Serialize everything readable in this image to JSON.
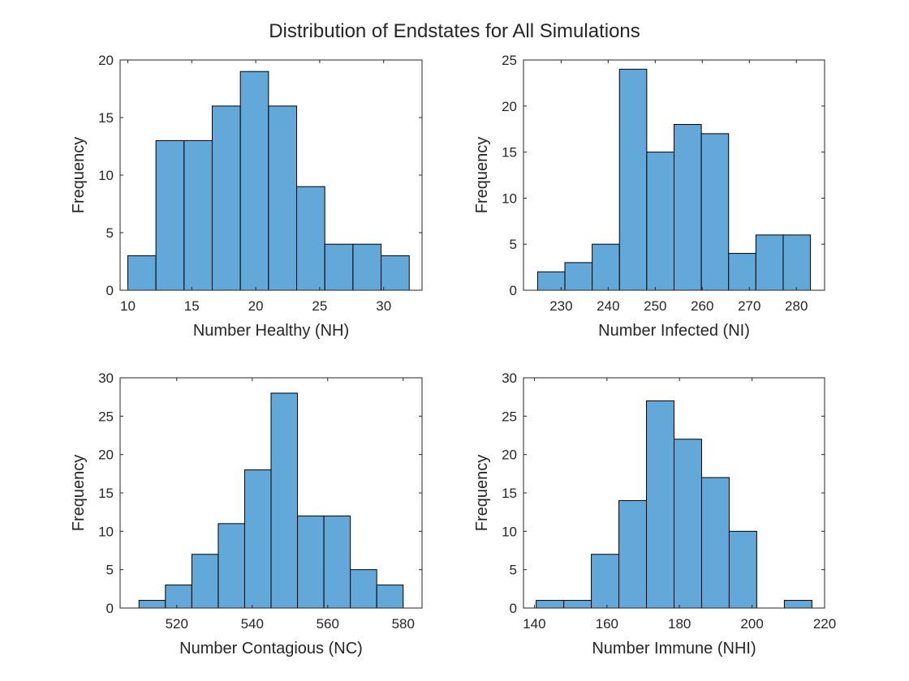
{
  "figure_title": "Distribution of Endstates for All Simulations",
  "bar_color": "#62a8d8",
  "chart_data": [
    {
      "type": "bar",
      "xlabel": "Number Healthy (NH)",
      "ylabel": "Frequency",
      "xlim": [
        9.4,
        33
      ],
      "ylim": [
        0,
        20
      ],
      "xticks": [
        10,
        15,
        20,
        25,
        30
      ],
      "yticks": [
        0,
        5,
        10,
        15,
        20
      ],
      "bin_edges": [
        10,
        12.2,
        14.4,
        16.6,
        18.8,
        21,
        23.2,
        25.4,
        27.6,
        29.8,
        32
      ],
      "values": [
        3,
        13,
        13,
        16,
        19,
        16,
        9,
        4,
        4,
        3
      ]
    },
    {
      "type": "bar",
      "xlabel": "Number Infected (NI)",
      "ylabel": "Frequency",
      "xlim": [
        222,
        286
      ],
      "ylim": [
        0,
        25
      ],
      "xticks": [
        230,
        240,
        250,
        260,
        270,
        280
      ],
      "yticks": [
        0,
        5,
        10,
        15,
        20,
        25
      ],
      "bin_edges": [
        225,
        230.8,
        236.6,
        242.4,
        248.2,
        254,
        259.8,
        265.6,
        271.4,
        277.2,
        283
      ],
      "values": [
        2,
        3,
        5,
        24,
        15,
        18,
        17,
        4,
        6,
        6
      ]
    },
    {
      "type": "bar",
      "xlabel": "Number Contagious (NC)",
      "ylabel": "Frequency",
      "xlim": [
        505,
        585
      ],
      "ylim": [
        0,
        30
      ],
      "xticks": [
        520,
        540,
        560,
        580
      ],
      "yticks": [
        0,
        5,
        10,
        15,
        20,
        25,
        30
      ],
      "bin_edges": [
        510,
        517,
        524,
        531,
        538,
        545,
        552,
        559,
        566,
        573,
        580
      ],
      "values": [
        1,
        3,
        7,
        11,
        18,
        28,
        12,
        12,
        5,
        3
      ]
    },
    {
      "type": "bar",
      "xlabel": "Number Immune (NHI)",
      "ylabel": "Frequency",
      "xlim": [
        137,
        220
      ],
      "ylim": [
        0,
        30
      ],
      "xticks": [
        140,
        160,
        180,
        200,
        220
      ],
      "yticks": [
        0,
        5,
        10,
        15,
        20,
        25,
        30
      ],
      "bin_edges": [
        140.5,
        148.1,
        155.7,
        163.3,
        170.9,
        178.5,
        186.1,
        193.7,
        201.3,
        208.9,
        216.5
      ],
      "values": [
        1,
        1,
        7,
        14,
        27,
        22,
        17,
        10,
        0,
        1
      ]
    }
  ]
}
